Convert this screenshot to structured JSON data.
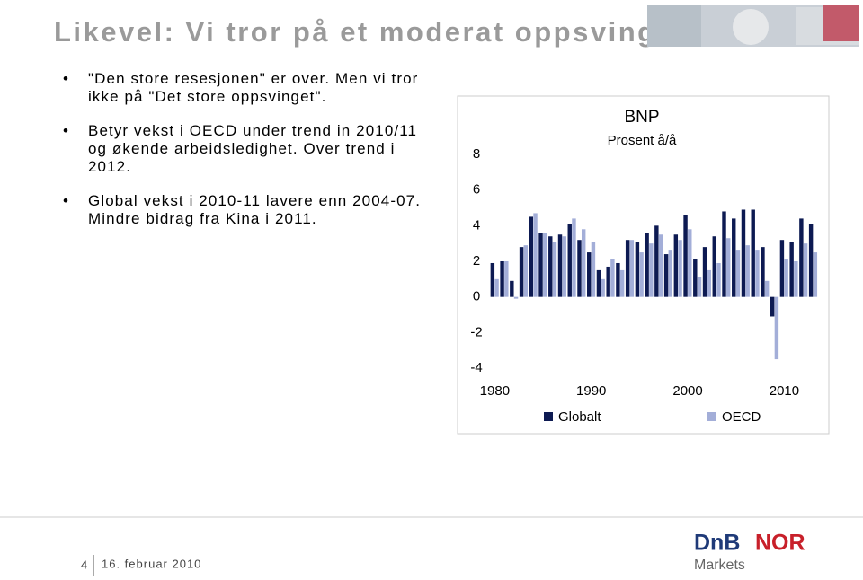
{
  "title": "Likevel: Vi tror på et moderat oppsving",
  "bullets": [
    "\"Den store resesjonen\" er over. Men vi tror ikke på \"Det store oppsvinget\".",
    "Betyr vekst i OECD under trend in 2010/11 og økende arbeidsledighet. Over trend i 2012.",
    "Global vekst i 2010-11 lavere enn 2004-07. Mindre bidrag fra Kina i 2011."
  ],
  "footer": {
    "page": "4",
    "date": "16. februar 2010"
  },
  "logo": {
    "name": "DnB",
    "name2": "NOR",
    "sub": "Markets"
  },
  "chart_data": {
    "type": "bar",
    "title": "BNP",
    "subtitle": "Prosent å/å",
    "x": [
      1980,
      1981,
      1982,
      1983,
      1984,
      1985,
      1986,
      1987,
      1988,
      1989,
      1990,
      1991,
      1992,
      1993,
      1994,
      1995,
      1996,
      1997,
      1998,
      1999,
      2000,
      2001,
      2002,
      2003,
      2004,
      2005,
      2006,
      2007,
      2008,
      2009,
      2010,
      2011,
      2012,
      2013
    ],
    "xlim": [
      1979.5,
      2013.5
    ],
    "xticks": [
      1980,
      1990,
      2000,
      2010
    ],
    "ylim": [
      -4,
      8
    ],
    "yticks": [
      -4,
      -2,
      0,
      2,
      4,
      6,
      8
    ],
    "grid": false,
    "legend": "bottom",
    "series": [
      {
        "name": "Globalt",
        "color": "#0d1a52",
        "values": [
          1.9,
          2.0,
          0.9,
          2.8,
          4.5,
          3.6,
          3.4,
          3.5,
          4.1,
          3.2,
          2.5,
          1.5,
          1.7,
          1.9,
          3.2,
          3.1,
          3.6,
          4.0,
          2.4,
          3.5,
          4.6,
          2.1,
          2.8,
          3.4,
          4.8,
          4.4,
          4.9,
          4.9,
          2.8,
          -1.1,
          3.2,
          3.1,
          4.4,
          4.1
        ]
      },
      {
        "name": "OECD",
        "color": "#a3aed8",
        "values": [
          1.0,
          2.0,
          -0.1,
          2.9,
          4.7,
          3.6,
          3.1,
          3.4,
          4.4,
          3.8,
          3.1,
          1.0,
          2.1,
          1.5,
          3.2,
          2.5,
          3.0,
          3.5,
          2.6,
          3.2,
          3.8,
          1.1,
          1.5,
          1.9,
          3.3,
          2.6,
          2.9,
          2.6,
          0.9,
          -3.5,
          2.1,
          2.0,
          3.0,
          2.5
        ]
      }
    ]
  }
}
